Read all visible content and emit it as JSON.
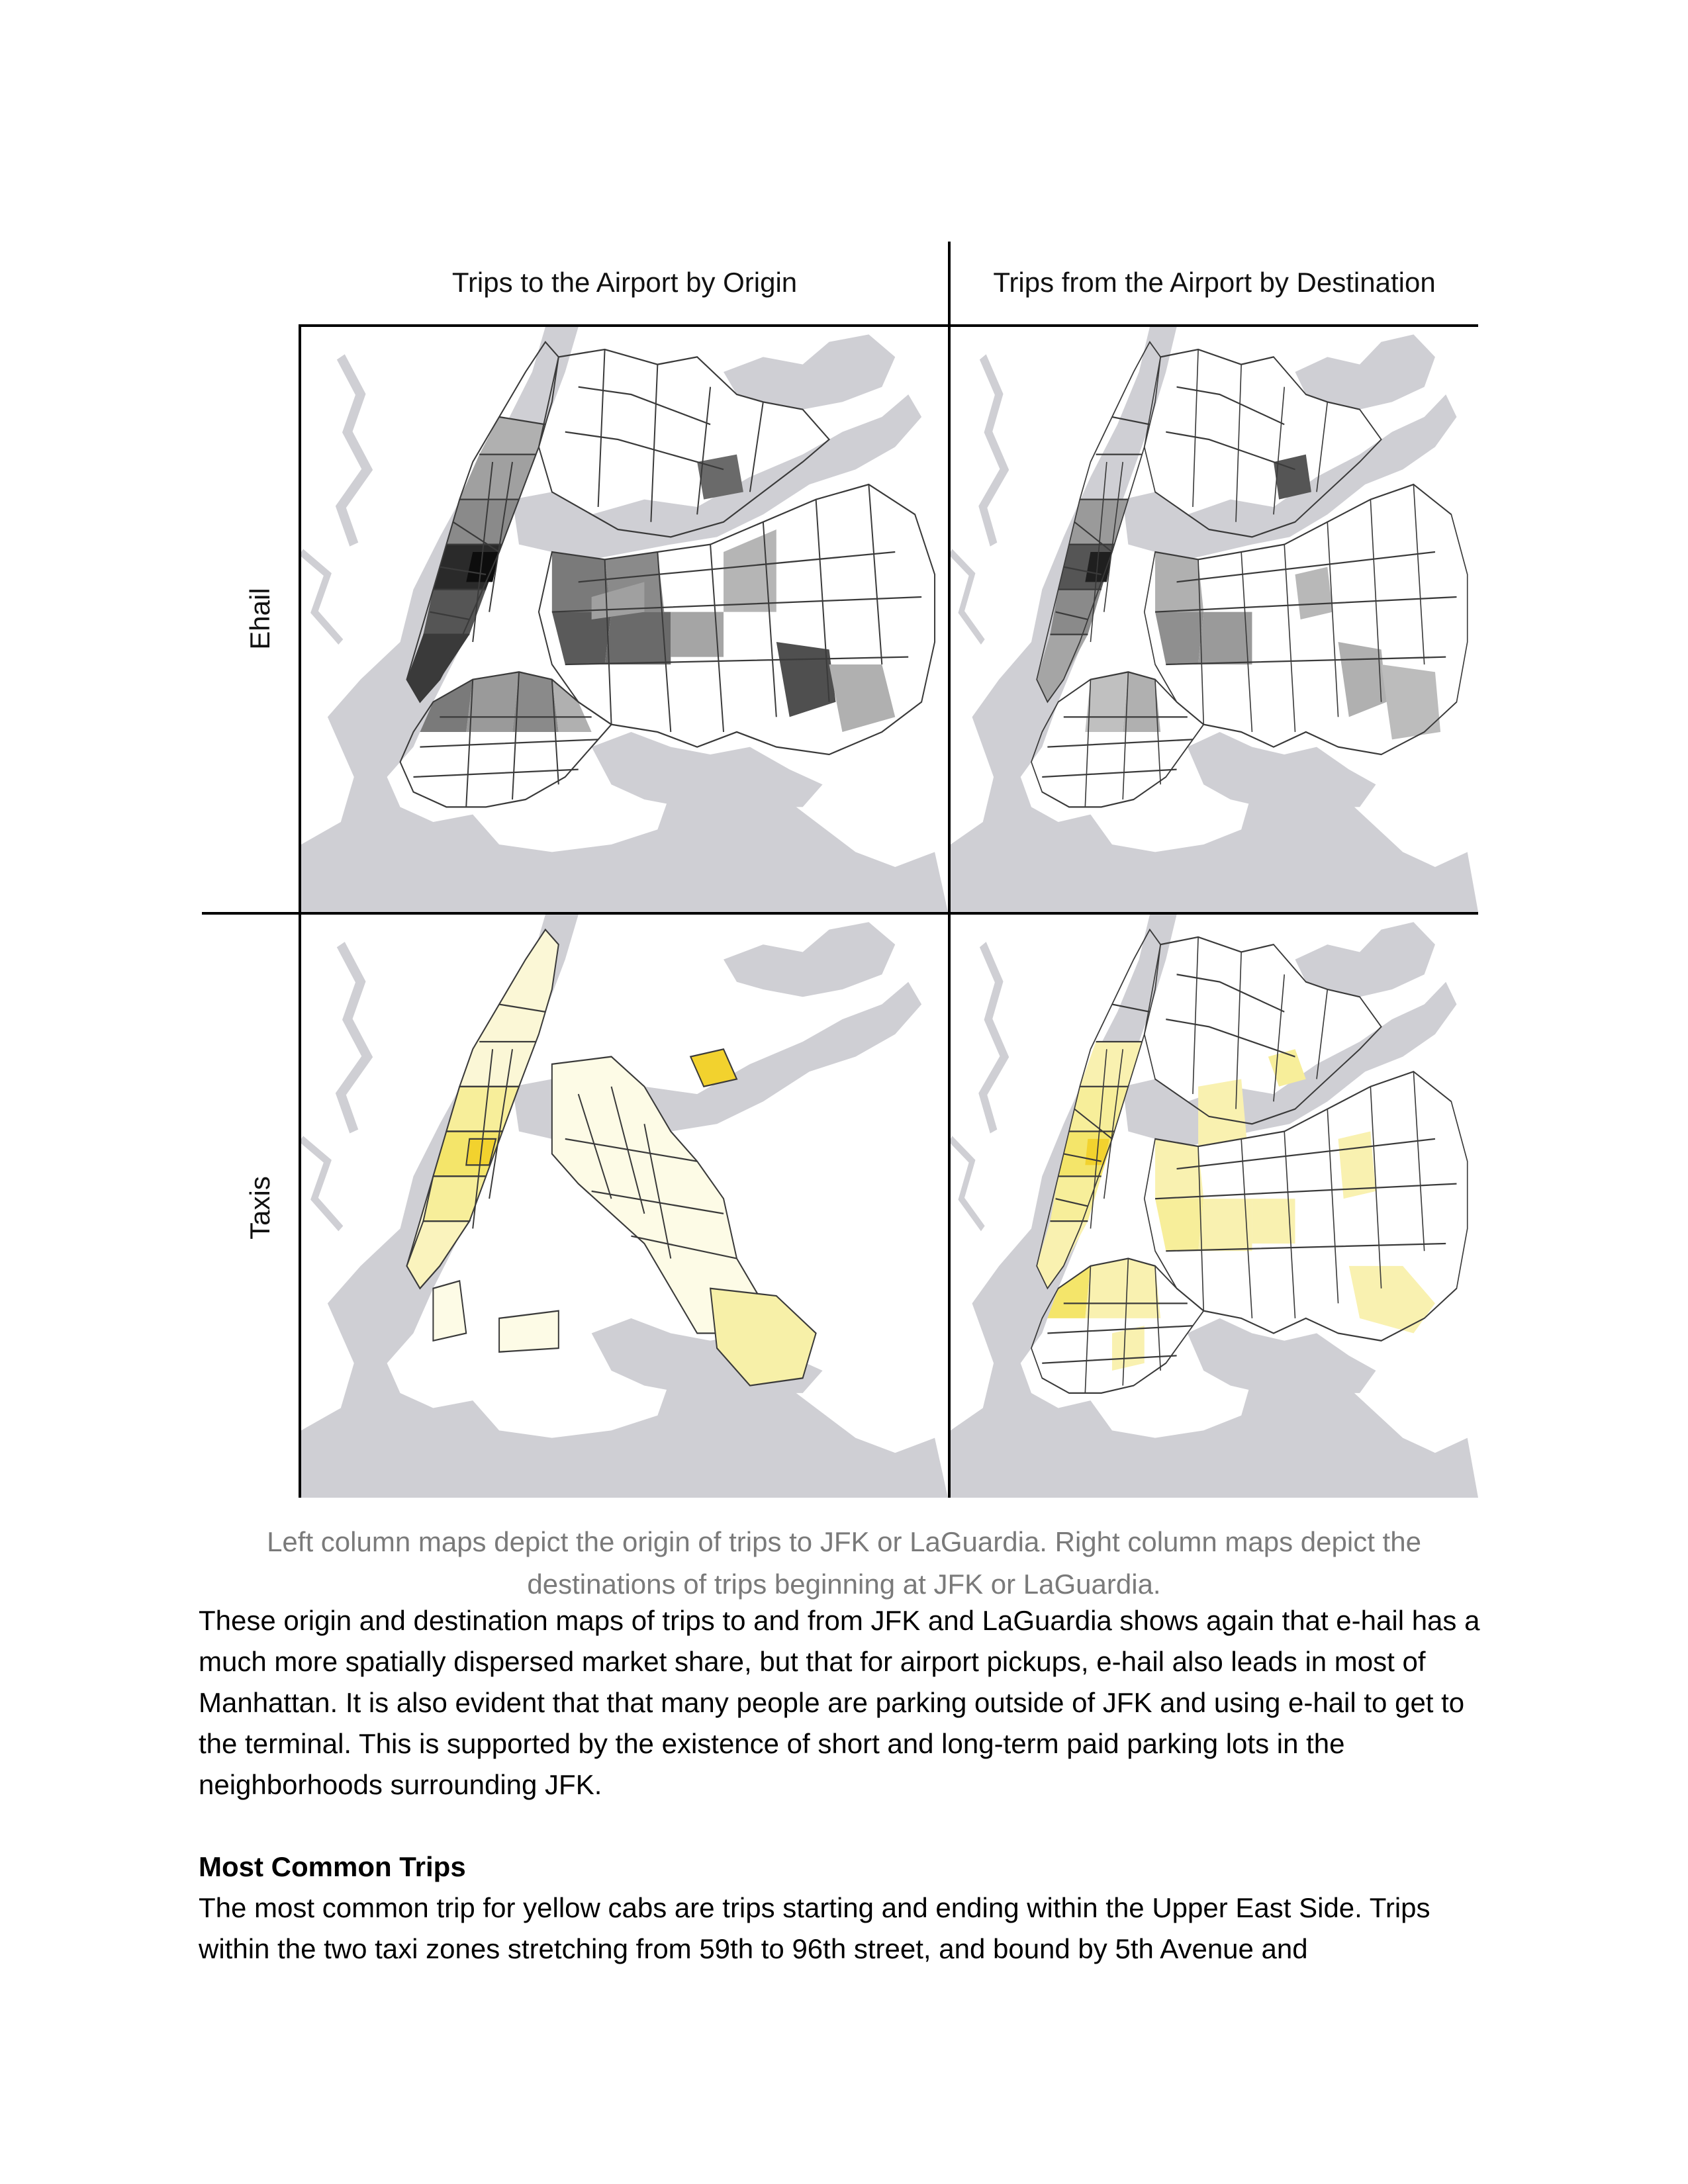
{
  "figure": {
    "column_titles": [
      "Trips to the Airport by Origin",
      "Trips from the Airport by Destination"
    ],
    "row_labels": [
      "Ehail",
      "Taxis"
    ],
    "panels": [
      {
        "row": "Ehail",
        "column": "Trips to the Airport by Origin",
        "color_scheme": "grayscale"
      },
      {
        "row": "Ehail",
        "column": "Trips from the Airport by Destination",
        "color_scheme": "grayscale"
      },
      {
        "row": "Taxis",
        "column": "Trips to the Airport by Origin",
        "color_scheme": "yellow"
      },
      {
        "row": "Taxis",
        "column": "Trips from the Airport by Destination",
        "color_scheme": "yellow"
      }
    ],
    "colors": {
      "water": "#cfcfd4",
      "zone_outline": "#3a3a3a",
      "ehail_dark": "#1a1a1a",
      "ehail_mid": "#7a7a7a",
      "ehail_light": "#b8b8b8",
      "taxi_strong": "#f2d22e",
      "taxi_mid": "#f7ee9a",
      "taxi_light": "#fdfbe6"
    },
    "caption": "Left column maps depict the origin of trips to JFK or LaGuardia. Right column maps depict the destinations of trips beginning at JFK or LaGuardia."
  },
  "paragraph_1": "These origin and destination maps of trips to and from JFK and LaGuardia shows again that e-hail has a much more spatially dispersed market share, but that for airport pickups, e-hail also leads in most of Manhattan. It is also evident that that many people are parking outside of JFK and using e-hail to get to the terminal. This is supported by the existence of short and long-term paid parking lots in the neighborhoods surrounding JFK.",
  "section_heading": "Most Common Trips",
  "paragraph_2": "The most common trip for yellow cabs are trips starting and ending within the Upper East Side. Trips within the two taxi zones stretching from 59th to 96th street, and bound by 5th Avenue and"
}
